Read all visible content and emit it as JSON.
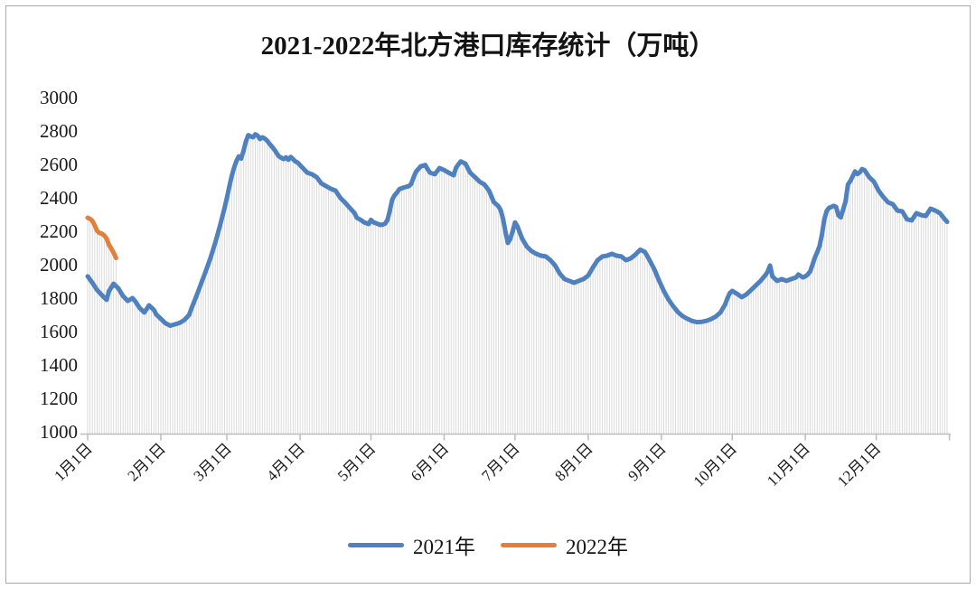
{
  "title": "2021-2022年北方港口库存统计（万吨）",
  "chart_data": {
    "type": "line",
    "title": "2021-2022年北方港口库存统计（万吨）",
    "unit": "万吨",
    "grid": false,
    "legend_position": "bottom",
    "drop_lines": true,
    "drop_line_color": "#dadada",
    "axis_color": "#bdbdbd",
    "text_color": "#1a1a1a",
    "y_axis": {
      "min": 1000,
      "max": 3000,
      "step": 200,
      "tick_values": [
        3000,
        2800,
        2600,
        2400,
        2200,
        2000,
        1800,
        1600,
        1400,
        1200,
        1000
      ]
    },
    "x_axis": {
      "total_days": 365,
      "end_tick_day": 365,
      "ticks": [
        {
          "label": "1月1日",
          "day": 0
        },
        {
          "label": "2月1日",
          "day": 31
        },
        {
          "label": "3月1日",
          "day": 59
        },
        {
          "label": "4月1日",
          "day": 90
        },
        {
          "label": "5月1日",
          "day": 120
        },
        {
          "label": "6月1日",
          "day": 151
        },
        {
          "label": "7月1日",
          "day": 181
        },
        {
          "label": "8月1日",
          "day": 212
        },
        {
          "label": "9月1日",
          "day": 243
        },
        {
          "label": "10月1日",
          "day": 273
        },
        {
          "label": "11月1日",
          "day": 304
        },
        {
          "label": "12月1日",
          "day": 334
        }
      ]
    },
    "series": [
      {
        "name": "2021年",
        "color": "#4e81bd",
        "days": [
          0,
          2,
          4,
          6,
          8,
          9,
          11,
          13,
          15,
          17,
          19,
          20,
          22,
          24,
          26,
          28,
          29,
          31,
          33,
          35,
          37,
          39,
          41,
          43,
          44,
          46,
          48,
          50,
          52,
          54,
          56,
          58,
          59,
          60,
          61,
          62,
          63,
          64,
          65,
          66,
          67,
          68,
          69,
          70,
          71,
          72,
          73,
          74,
          75,
          76,
          77,
          79,
          81,
          83,
          84,
          85,
          86,
          88,
          89,
          91,
          93,
          95,
          97,
          99,
          101,
          103,
          105,
          107,
          109,
          111,
          113,
          114,
          116,
          117,
          119,
          120,
          121,
          123,
          124,
          125,
          126,
          127,
          128,
          129,
          130,
          131,
          132,
          134,
          136,
          137,
          138,
          139,
          141,
          143,
          144,
          145,
          147,
          149,
          151,
          153,
          155,
          156,
          157,
          158,
          160,
          162,
          164,
          166,
          168,
          170,
          172,
          174,
          175,
          176,
          177,
          178,
          179,
          180,
          181,
          182,
          184,
          186,
          188,
          190,
          192,
          194,
          196,
          198,
          200,
          202,
          204,
          206,
          208,
          210,
          212,
          214,
          216,
          218,
          220,
          222,
          224,
          226,
          228,
          230,
          232,
          234,
          236,
          238,
          240,
          242,
          244,
          246,
          248,
          250,
          252,
          254,
          256,
          258,
          260,
          262,
          264,
          266,
          268,
          270,
          271,
          272,
          273,
          275,
          277,
          279,
          281,
          283,
          285,
          287,
          288,
          289,
          290,
          292,
          294,
          296,
          298,
          300,
          301,
          303,
          304,
          305,
          306,
          307,
          308,
          309,
          310,
          311,
          312,
          313,
          314,
          316,
          317,
          318,
          319,
          320,
          321,
          322,
          323,
          325,
          326,
          327,
          328,
          329,
          331,
          333,
          335,
          337,
          339,
          341,
          343,
          345,
          347,
          349,
          351,
          353,
          355,
          357,
          359,
          361,
          363,
          364
        ],
        "values": [
          1930,
          1892,
          1848,
          1818,
          1790,
          1840,
          1886,
          1858,
          1812,
          1783,
          1800,
          1784,
          1741,
          1714,
          1757,
          1730,
          1703,
          1676,
          1649,
          1635,
          1643,
          1652,
          1670,
          1700,
          1740,
          1810,
          1885,
          1960,
          2040,
          2130,
          2230,
          2340,
          2400,
          2470,
          2530,
          2580,
          2620,
          2648,
          2635,
          2680,
          2735,
          2775,
          2768,
          2762,
          2780,
          2772,
          2752,
          2762,
          2755,
          2742,
          2724,
          2690,
          2648,
          2632,
          2642,
          2628,
          2645,
          2618,
          2610,
          2580,
          2551,
          2541,
          2524,
          2486,
          2470,
          2454,
          2443,
          2400,
          2372,
          2340,
          2310,
          2281,
          2265,
          2254,
          2243,
          2268,
          2254,
          2243,
          2238,
          2240,
          2246,
          2268,
          2324,
          2390,
          2415,
          2432,
          2452,
          2462,
          2470,
          2482,
          2520,
          2555,
          2588,
          2596,
          2572,
          2551,
          2541,
          2578,
          2566,
          2550,
          2535,
          2580,
          2600,
          2618,
          2605,
          2551,
          2524,
          2497,
          2480,
          2443,
          2375,
          2350,
          2324,
          2270,
          2195,
          2130,
          2155,
          2200,
          2253,
          2230,
          2157,
          2108,
          2081,
          2065,
          2054,
          2049,
          2027,
          1995,
          1946,
          1914,
          1903,
          1892,
          1903,
          1914,
          1935,
          1984,
          2027,
          2049,
          2054,
          2065,
          2054,
          2049,
          2027,
          2038,
          2060,
          2090,
          2076,
          2027,
          1973,
          1905,
          1843,
          1792,
          1752,
          1716,
          1692,
          1676,
          1663,
          1656,
          1658,
          1664,
          1674,
          1690,
          1714,
          1762,
          1800,
          1830,
          1843,
          1826,
          1806,
          1822,
          1849,
          1876,
          1903,
          1936,
          1958,
          1995,
          1930,
          1903,
          1914,
          1903,
          1914,
          1924,
          1941,
          1924,
          1930,
          1942,
          1960,
          2000,
          2042,
          2075,
          2112,
          2180,
          2270,
          2322,
          2340,
          2352,
          2346,
          2295,
          2283,
          2330,
          2380,
          2480,
          2500,
          2558,
          2542,
          2552,
          2572,
          2566,
          2524,
          2497,
          2443,
          2405,
          2373,
          2362,
          2324,
          2319,
          2272,
          2265,
          2308,
          2297,
          2292,
          2335,
          2324,
          2308,
          2272,
          2256
        ]
      },
      {
        "name": "2022年",
        "color": "#e17f3d",
        "days": [
          0,
          1,
          2,
          3,
          4,
          5,
          6,
          7,
          8,
          9,
          10,
          11,
          12
        ],
        "values": [
          2281,
          2274,
          2262,
          2235,
          2202,
          2190,
          2186,
          2175,
          2157,
          2120,
          2096,
          2072,
          2040
        ]
      }
    ]
  }
}
